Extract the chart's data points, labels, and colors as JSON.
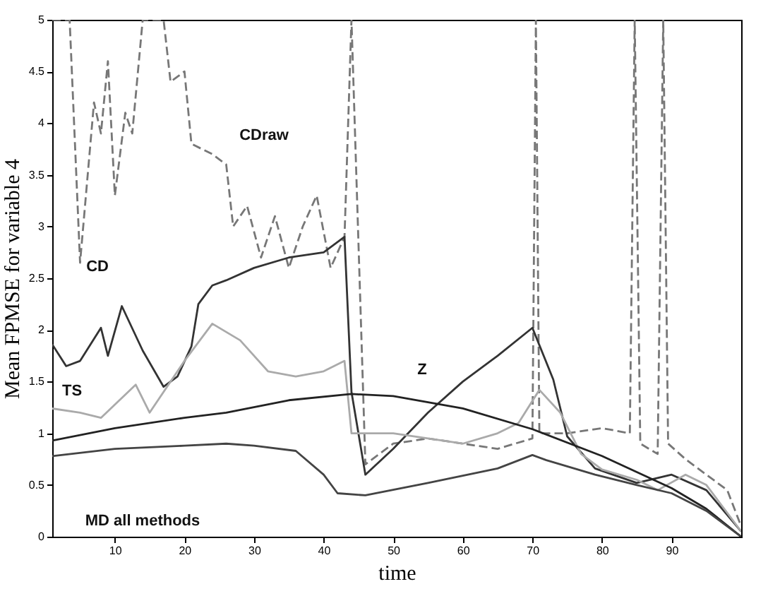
{
  "chart_data": {
    "type": "line",
    "xlabel": "time",
    "ylabel": "Mean FPMSE for variable 4",
    "xlim": [
      1,
      100
    ],
    "ylim": [
      0,
      5
    ],
    "xticks": [
      10,
      20,
      30,
      40,
      50,
      60,
      70,
      80,
      90
    ],
    "yticks": [
      0,
      0.5,
      1,
      1.5,
      2,
      2.5,
      3,
      3.5,
      4,
      4.5,
      5
    ],
    "series": [
      {
        "color": "#777777",
        "line_style": "dashed",
        "x": [
          1,
          3.5,
          5,
          7,
          8,
          9,
          10,
          11.5,
          12.5,
          14,
          17,
          18,
          20,
          21,
          24,
          26,
          27,
          29,
          31,
          33,
          35,
          37,
          39,
          41,
          43,
          44,
          46,
          50,
          55,
          60,
          65,
          70,
          70.5,
          71,
          75,
          80,
          84,
          84.7,
          85.5,
          88,
          88.8,
          89.5,
          92,
          95,
          98,
          100
        ],
        "values": [
          5,
          5,
          2.65,
          4.2,
          3.9,
          4.6,
          3.3,
          4.1,
          3.9,
          5,
          5,
          4.4,
          4.5,
          3.8,
          3.7,
          3.6,
          3.0,
          3.2,
          2.7,
          3.1,
          2.6,
          3.0,
          3.3,
          2.6,
          2.9,
          5,
          0.7,
          0.9,
          0.95,
          0.9,
          0.85,
          0.95,
          5,
          1.0,
          1.0,
          1.05,
          1.0,
          5,
          0.9,
          0.8,
          5,
          0.9,
          0.75,
          0.6,
          0.45,
          0.1
        ]
      },
      {
        "color": "#333333",
        "line_style": "solid",
        "x": [
          1,
          3,
          5,
          8,
          9,
          11,
          14,
          17,
          19,
          21,
          22,
          24,
          26,
          30,
          35,
          40,
          43,
          44,
          46,
          50,
          55,
          60,
          65,
          70,
          73,
          75,
          79,
          85,
          90,
          95,
          100
        ],
        "values": [
          1.86,
          1.65,
          1.7,
          2.02,
          1.75,
          2.23,
          1.8,
          1.45,
          1.55,
          1.84,
          2.25,
          2.43,
          2.48,
          2.6,
          2.7,
          2.75,
          2.9,
          1.4,
          0.6,
          0.85,
          1.2,
          1.5,
          1.75,
          2.02,
          1.52,
          0.97,
          0.66,
          0.52,
          0.6,
          0.45,
          0.05
        ]
      },
      {
        "color": "#aaaaaa",
        "line_style": "solid",
        "x": [
          1,
          5,
          8,
          13,
          15,
          20,
          24,
          28,
          32,
          36,
          40,
          43,
          44,
          50,
          55,
          60,
          65,
          68,
          71,
          74,
          77,
          80,
          85,
          88,
          92,
          95,
          100
        ],
        "values": [
          1.24,
          1.2,
          1.15,
          1.47,
          1.2,
          1.7,
          2.06,
          1.9,
          1.6,
          1.55,
          1.6,
          1.7,
          1.0,
          1.0,
          0.95,
          0.9,
          1.0,
          1.1,
          1.42,
          1.2,
          0.8,
          0.65,
          0.55,
          0.45,
          0.6,
          0.5,
          0.05
        ]
      },
      {
        "color": "#222222",
        "line_style": "solid",
        "x": [
          1,
          10,
          20,
          26,
          35,
          44,
          50,
          60,
          70,
          80,
          90,
          95,
          100
        ],
        "values": [
          0.93,
          1.05,
          1.15,
          1.2,
          1.32,
          1.38,
          1.36,
          1.24,
          1.04,
          0.78,
          0.47,
          0.27,
          0.0
        ]
      },
      {
        "color": "#444444",
        "line_style": "solid",
        "x": [
          1,
          10,
          20,
          26,
          30,
          36,
          40,
          42,
          46,
          55,
          65,
          70,
          72,
          79,
          85,
          90,
          95,
          100
        ],
        "values": [
          0.78,
          0.85,
          0.88,
          0.9,
          0.88,
          0.83,
          0.6,
          0.42,
          0.4,
          0.52,
          0.66,
          0.79,
          0.74,
          0.6,
          0.5,
          0.42,
          0.25,
          0.0
        ]
      }
    ],
    "annotations": [
      "CDraw",
      "CD",
      "TS",
      "Z",
      "MD all methods"
    ]
  }
}
